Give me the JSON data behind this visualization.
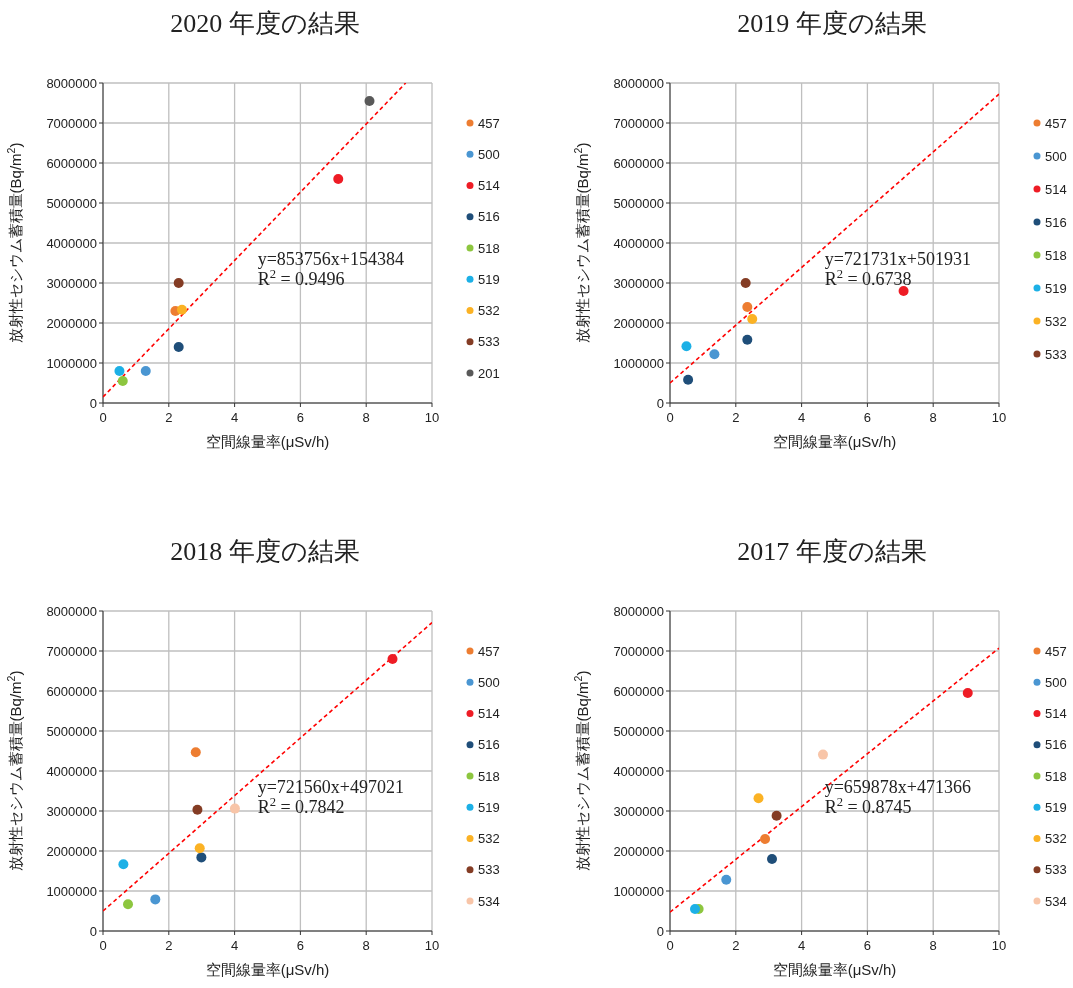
{
  "chart_data": [
    {
      "type": "scatter",
      "title": "2020 年度の結果",
      "xlabel": "空間線量率(μSv/h)",
      "ylabel": "放射性セシウム蓄積量(Bq/m$^{2}$)",
      "xlim": [
        0,
        10
      ],
      "xticks": [
        0,
        2,
        4,
        6,
        8,
        10
      ],
      "ylim": [
        0,
        8000000
      ],
      "yticks": [
        0,
        1000000,
        2000000,
        3000000,
        4000000,
        5000000,
        6000000,
        7000000,
        8000000
      ],
      "grid": true,
      "legend": "right",
      "marker": "circle",
      "annotations": [
        "y=853756x+154384",
        "R$^{2}$ = 0.9496"
      ],
      "series": [
        {
          "name": "457",
          "color": "#ed7d31",
          "x": [
            2.2
          ],
          "values": [
            2300000
          ]
        },
        {
          "name": "500",
          "color": "#4a96d2",
          "x": [
            1.3
          ],
          "values": [
            800000
          ]
        },
        {
          "name": "514",
          "color": "#ee1c25",
          "x": [
            7.15
          ],
          "values": [
            5600000
          ]
        },
        {
          "name": "516",
          "color": "#1f4e79",
          "x": [
            2.3
          ],
          "values": [
            1400000
          ]
        },
        {
          "name": "518",
          "color": "#8dc63f",
          "x": [
            0.6
          ],
          "values": [
            550000
          ]
        },
        {
          "name": "519",
          "color": "#1cb0e6",
          "x": [
            0.5
          ],
          "values": [
            800000
          ]
        },
        {
          "name": "532",
          "color": "#fbb224",
          "x": [
            2.4
          ],
          "values": [
            2330000
          ]
        },
        {
          "name": "533",
          "color": "#843c24",
          "x": [
            2.3
          ],
          "values": [
            3000000
          ]
        },
        {
          "name": "201",
          "color": "#595959",
          "x": [
            8.1
          ],
          "values": [
            7550000
          ]
        },
        {
          "type": "line",
          "line_style": "dashed",
          "color": "#ff0000",
          "marker": "none",
          "x": [
            0,
            9.2
          ],
          "values": [
            150000,
            8000000
          ]
        }
      ]
    },
    {
      "type": "scatter",
      "title": "2019 年度の結果",
      "xlabel": "空間線量率(μSv/h)",
      "ylabel": "放射性セシウム蓄積量(Bq/m$^{2}$)",
      "xlim": [
        0,
        10
      ],
      "xticks": [
        0,
        2,
        4,
        6,
        8,
        10
      ],
      "ylim": [
        0,
        8000000
      ],
      "yticks": [
        0,
        1000000,
        2000000,
        3000000,
        4000000,
        5000000,
        6000000,
        7000000,
        8000000
      ],
      "grid": true,
      "legend": "right",
      "marker": "circle",
      "annotations": [
        "y=721731x+501931",
        "R$^{2}$ = 0.6738"
      ],
      "series": [
        {
          "name": "457",
          "color": "#ed7d31",
          "x": [
            2.35
          ],
          "values": [
            2400000
          ]
        },
        {
          "name": "500",
          "color": "#4a96d2",
          "x": [
            1.35
          ],
          "values": [
            1220000
          ]
        },
        {
          "name": "514",
          "color": "#ee1c25",
          "x": [
            7.1
          ],
          "values": [
            2800000
          ]
        },
        {
          "name": "516",
          "color": "#1f4e79",
          "x": [
            0.55,
            2.35
          ],
          "values": [
            580000,
            1580000
          ]
        },
        {
          "name": "518",
          "color": "#8dc63f",
          "x": [
            null
          ],
          "values": [
            null
          ]
        },
        {
          "name": "519",
          "color": "#1cb0e6",
          "x": [
            0.5
          ],
          "values": [
            1420000
          ]
        },
        {
          "name": "532",
          "color": "#fbb224",
          "x": [
            2.5
          ],
          "values": [
            2100000
          ]
        },
        {
          "name": "533",
          "color": "#843c24",
          "x": [
            2.3
          ],
          "values": [
            3000000
          ]
        },
        {
          "type": "line",
          "line_style": "dashed",
          "color": "#ff0000",
          "marker": "none",
          "x": [
            0,
            10
          ],
          "values": [
            500000,
            7720000
          ]
        }
      ]
    },
    {
      "type": "scatter",
      "title": "2018 年度の結果",
      "xlabel": "空間線量率(μSv/h)",
      "ylabel": "放射性セシウム蓄積量(Bq/m$^{2}$)",
      "xlim": [
        0,
        10
      ],
      "xticks": [
        0,
        2,
        4,
        6,
        8,
        10
      ],
      "ylim": [
        0,
        8000000
      ],
      "yticks": [
        0,
        1000000,
        2000000,
        3000000,
        4000000,
        5000000,
        6000000,
        7000000,
        8000000
      ],
      "grid": true,
      "legend": "right",
      "marker": "circle",
      "annotations": [
        "y=721560x+497021",
        "R$^{2}$ = 0.7842"
      ],
      "series": [
        {
          "name": "457",
          "color": "#ed7d31",
          "x": [
            2.82
          ],
          "values": [
            4470000
          ]
        },
        {
          "name": "500",
          "color": "#4a96d2",
          "x": [
            1.59
          ],
          "values": [
            790000
          ]
        },
        {
          "name": "514",
          "color": "#ee1c25",
          "x": [
            8.8
          ],
          "values": [
            6800000
          ]
        },
        {
          "name": "516",
          "color": "#1f4e79",
          "x": [
            2.99
          ],
          "values": [
            1840000
          ]
        },
        {
          "name": "518",
          "color": "#8dc63f",
          "x": [
            0.76
          ],
          "values": [
            670000
          ]
        },
        {
          "name": "519",
          "color": "#1cb0e6",
          "x": [
            0.62
          ],
          "values": [
            1670000
          ]
        },
        {
          "name": "532",
          "color": "#fbb224",
          "x": [
            2.94
          ],
          "values": [
            2070000
          ]
        },
        {
          "name": "533",
          "color": "#843c24",
          "x": [
            2.87
          ],
          "values": [
            3030000
          ]
        },
        {
          "name": "534",
          "color": "#f8c5a8",
          "x": [
            4.01
          ],
          "values": [
            3060000
          ]
        },
        {
          "type": "line",
          "line_style": "dashed",
          "color": "#ff0000",
          "marker": "none",
          "x": [
            0,
            10
          ],
          "values": [
            500000,
            7710000
          ]
        }
      ]
    },
    {
      "type": "scatter",
      "title": "2017 年度の結果",
      "xlabel": "空間線量率(μSv/h)",
      "ylabel": "放射性セシウム蓄積量(Bq/m$^{2}$)",
      "xlim": [
        0,
        10
      ],
      "xticks": [
        0,
        2,
        4,
        6,
        8,
        10
      ],
      "ylim": [
        0,
        8000000
      ],
      "yticks": [
        0,
        1000000,
        2000000,
        3000000,
        4000000,
        5000000,
        6000000,
        7000000,
        8000000
      ],
      "grid": true,
      "legend": "right",
      "marker": "circle",
      "annotations": [
        "y=659878x+471366",
        "R$^{2}$ = 0.8745"
      ],
      "series": [
        {
          "name": "457",
          "color": "#ed7d31",
          "x": [
            2.89
          ],
          "values": [
            2300000
          ]
        },
        {
          "name": "500",
          "color": "#4a96d2",
          "x": [
            1.71
          ],
          "values": [
            1280000
          ]
        },
        {
          "name": "514",
          "color": "#ee1c25",
          "x": [
            9.05
          ],
          "values": [
            5950000
          ]
        },
        {
          "name": "516",
          "color": "#1f4e79",
          "x": [
            3.1
          ],
          "values": [
            1800000
          ]
        },
        {
          "name": "518",
          "color": "#8dc63f",
          "x": [
            0.87
          ],
          "values": [
            550000
          ]
        },
        {
          "name": "519",
          "color": "#1cb0e6",
          "x": [
            0.76
          ],
          "values": [
            550000
          ]
        },
        {
          "name": "532",
          "color": "#fbb224",
          "x": [
            2.69
          ],
          "values": [
            3320000
          ]
        },
        {
          "name": "533",
          "color": "#843c24",
          "x": [
            3.24
          ],
          "values": [
            2880000
          ]
        },
        {
          "name": "534",
          "color": "#f8c5a8",
          "x": [
            4.65
          ],
          "values": [
            4410000
          ]
        },
        {
          "type": "line",
          "line_style": "dashed",
          "color": "#ff0000",
          "marker": "none",
          "x": [
            0,
            10
          ],
          "values": [
            470000,
            7070000
          ]
        }
      ]
    }
  ]
}
